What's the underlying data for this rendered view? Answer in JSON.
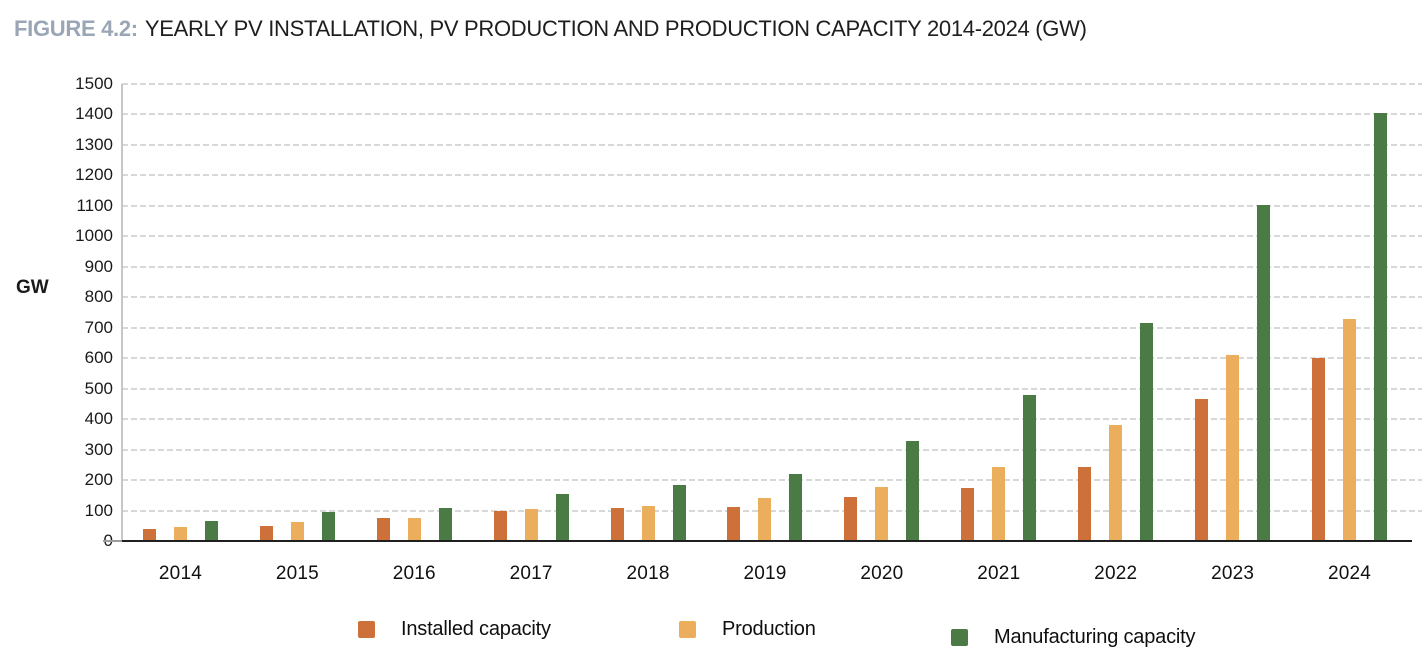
{
  "figure": {
    "label": "FIGURE 4.2:",
    "title": "YEARLY PV INSTALLATION, PV PRODUCTION AND PRODUCTION CAPACITY 2014-2024 (GW)"
  },
  "axis": {
    "y_unit": "GW",
    "y_min": 0,
    "y_max": 1500,
    "y_step": 100
  },
  "chart_data": {
    "type": "bar",
    "title": "YEARLY PV INSTALLATION, PV PRODUCTION AND PRODUCTION CAPACITY 2014-2024 (GW)",
    "categories": [
      "2014",
      "2015",
      "2016",
      "2017",
      "2018",
      "2019",
      "2020",
      "2021",
      "2022",
      "2023",
      "2024"
    ],
    "series": [
      {
        "name": "Installed capacity",
        "color": "#CE7039",
        "values": [
          40,
          50,
          75,
          100,
          108,
          112,
          144,
          174,
          242,
          465,
          600
        ]
      },
      {
        "name": "Production",
        "color": "#EBAE5D",
        "values": [
          45,
          63,
          77,
          105,
          114,
          140,
          177,
          242,
          380,
          612,
          730
        ]
      },
      {
        "name": "Manufacturing capacity",
        "color": "#4B7B44",
        "values": [
          65,
          94,
          107,
          155,
          183,
          220,
          328,
          480,
          717,
          1104,
          1406
        ]
      }
    ],
    "ylabel": "GW",
    "xlabel": "",
    "ylim": [
      0,
      1500
    ],
    "grid": "horizontal-dashed",
    "legend_position": "bottom"
  },
  "colors": {
    "figure_label": "#9AA6B5",
    "gridline": "#D8D8D8",
    "axis_line": "#C6C6C6",
    "baseline": "#1F1F1F"
  }
}
